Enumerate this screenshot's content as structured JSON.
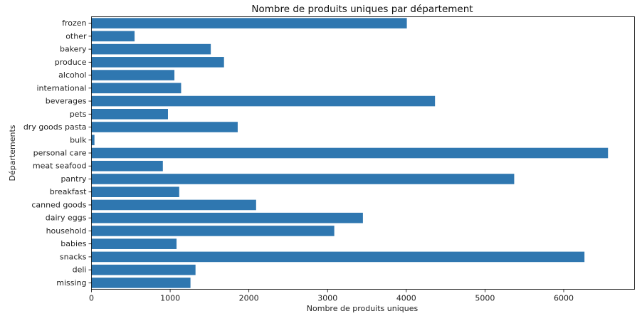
{
  "chart_data": {
    "type": "bar",
    "orientation": "horizontal",
    "title": "Nombre de produits uniques par département",
    "xlabel": "Nombre de produits uniques",
    "ylabel": "Départements",
    "xlim": [
      0,
      6900
    ],
    "xticks": [
      0,
      1000,
      2000,
      3000,
      4000,
      5000,
      6000
    ],
    "grid": false,
    "bar_color": "#2f77b0",
    "categories": [
      "frozen",
      "other",
      "bakery",
      "produce",
      "alcohol",
      "international",
      "beverages",
      "pets",
      "dry goods pasta",
      "bulk",
      "personal care",
      "meat seafood",
      "pantry",
      "breakfast",
      "canned goods",
      "dairy eggs",
      "household",
      "babies",
      "snacks",
      "deli",
      "missing"
    ],
    "values": [
      4007,
      548,
      1516,
      1684,
      1054,
      1139,
      4365,
      972,
      1858,
      38,
      6563,
      907,
      5371,
      1115,
      2092,
      3449,
      3085,
      1081,
      6264,
      1322,
      1258
    ]
  }
}
